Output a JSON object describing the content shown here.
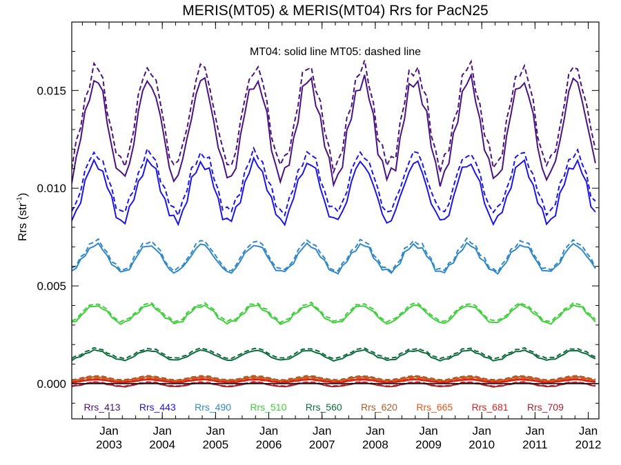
{
  "chart_data": {
    "type": "line",
    "title": "MERIS(MT05) & MERIS(MT04)  Rrs for PacN25",
    "subtitle": "MT04: solid line   MT05: dashed line",
    "ylabel_main": "Rrs (str",
    "ylabel_sup": "-1",
    "ylabel_tail": ")",
    "ylim": [
      -0.0018,
      0.0185
    ],
    "xlim": [
      2002.3,
      2012.2
    ],
    "grid": false,
    "yticks": [
      {
        "value": 0.0,
        "label": "0.000"
      },
      {
        "value": 0.005,
        "label": "0.005"
      },
      {
        "value": 0.01,
        "label": "0.010"
      },
      {
        "value": 0.015,
        "label": "0.015"
      }
    ],
    "xticks": [
      {
        "value": 2003,
        "month": "Jan",
        "year": "2003"
      },
      {
        "value": 2004,
        "month": "Jan",
        "year": "2004"
      },
      {
        "value": 2005,
        "month": "Jan",
        "year": "2005"
      },
      {
        "value": 2006,
        "month": "Jan",
        "year": "2006"
      },
      {
        "value": 2007,
        "month": "Jan",
        "year": "2007"
      },
      {
        "value": 2008,
        "month": "Jan",
        "year": "2008"
      },
      {
        "value": 2009,
        "month": "Jan",
        "year": "2009"
      },
      {
        "value": 2010,
        "month": "Jan",
        "year": "2010"
      },
      {
        "value": 2011,
        "month": "Jan",
        "year": "2011"
      },
      {
        "value": 2012,
        "month": "Jan",
        "year": "2012"
      }
    ],
    "series_style": {
      "MT04": "solid",
      "MT05": "dashed"
    },
    "series": [
      {
        "name": "Rrs_413",
        "color": "#4b1080",
        "mt04_peak": 0.0155,
        "mt04_trough": 0.0105,
        "mt05_peak": 0.0162,
        "mt05_trough": 0.0112
      },
      {
        "name": "Rrs_443",
        "color": "#1a14e6",
        "mt04_peak": 0.0113,
        "mt04_trough": 0.0083,
        "mt05_peak": 0.0118,
        "mt05_trough": 0.0088
      },
      {
        "name": "Rrs_490",
        "color": "#2f88c8",
        "mt04_peak": 0.0071,
        "mt04_trough": 0.0057,
        "mt05_peak": 0.0073,
        "mt05_trough": 0.0058
      },
      {
        "name": "Rrs_510",
        "color": "#3ecf3a",
        "mt04_peak": 0.004,
        "mt04_trough": 0.0031,
        "mt05_peak": 0.0041,
        "mt05_trough": 0.0032
      },
      {
        "name": "Rrs_560",
        "color": "#0b6a3a",
        "mt04_peak": 0.0017,
        "mt04_trough": 0.0012,
        "mt05_peak": 0.0018,
        "mt05_trough": 0.0013
      },
      {
        "name": "Rrs_620",
        "color": "#b05a28",
        "mt04_peak": 0.00035,
        "mt04_trough": 0.00015,
        "mt05_peak": 0.0004,
        "mt05_trough": 0.0002
      },
      {
        "name": "Rrs_665",
        "color": "#e05a18",
        "mt04_peak": 0.00025,
        "mt04_trough": 0.0001,
        "mt05_peak": 0.0003,
        "mt05_trough": 0.00012
      },
      {
        "name": "Rrs_681",
        "color": "#d42020",
        "mt04_peak": 0.0002,
        "mt04_trough": 5e-05,
        "mt05_peak": 0.00022,
        "mt05_trough": 8e-05
      },
      {
        "name": "Rrs_709",
        "color": "#b01e2a",
        "mt04_peak": 5e-05,
        "mt04_trough": -0.00015,
        "mt05_peak": 8e-05,
        "mt05_trough": -0.00012
      }
    ],
    "extra_line": {
      "color": "#000000",
      "value": 0.0
    }
  }
}
